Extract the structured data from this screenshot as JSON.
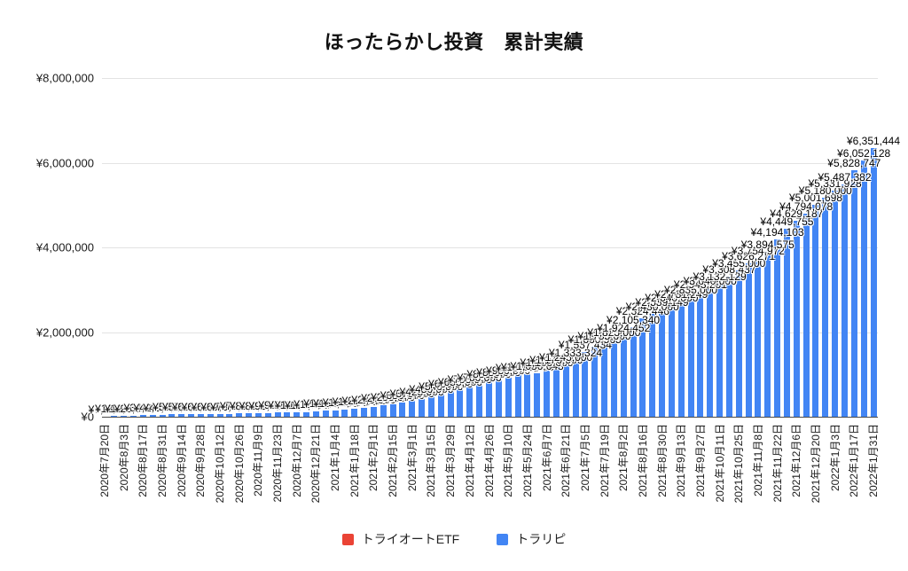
{
  "title": "ほったらかし投資　累計実績",
  "legend": {
    "items": [
      {
        "label": "トライオートETF",
        "color": "#EA4335"
      },
      {
        "label": "トラリピ",
        "color": "#4285F4"
      }
    ]
  },
  "chart_data": {
    "type": "bar",
    "title": "ほったらかし投資　累計実績",
    "xlabel": "",
    "ylabel": "",
    "ylim": [
      0,
      8000000
    ],
    "grid": "horizontal",
    "legend_position": "bottom",
    "bar_color": "#4285F4",
    "currency_prefix": "¥",
    "y_ticks": [
      {
        "value": 0,
        "label": "¥0"
      },
      {
        "value": 2000000,
        "label": "¥2,000,000"
      },
      {
        "value": 4000000,
        "label": "¥4,000,000"
      },
      {
        "value": 6000000,
        "label": "¥6,000,000"
      },
      {
        "value": 8000000,
        "label": "¥8,000,000"
      }
    ],
    "x_tick_every_n_bars": 2,
    "x_tick_labels": [
      "2020年7月20日",
      "2020年8月3日",
      "2020年8月17日",
      "2020年8月31日",
      "2020年9月14日",
      "2020年9月28日",
      "2020年10月12日",
      "2020年10月26日",
      "2020年11月9日",
      "2020年11月23日",
      "2020年12月7日",
      "2020年12月21日",
      "2021年1月4日",
      "2021年1月18日",
      "2021年2月1日",
      "2021年2月15日",
      "2021年3月1日",
      "2021年3月15日",
      "2021年3月29日",
      "2021年4月12日",
      "2021年4月26日",
      "2021年5月10日",
      "2021年5月24日",
      "2021年6月7日",
      "2021年6月21日",
      "2021年7月5日",
      "2021年7月19日",
      "2021年8月2日",
      "2021年8月16日",
      "2021年8月30日",
      "2021年9月13日",
      "2021年9月27日",
      "2021年10月11日",
      "2021年10月25日",
      "2021年11月8日",
      "2021年11月22日",
      "2021年12月6日",
      "2021年12月20日",
      "2022年1月3日",
      "2022年1月17日",
      "2022年1月31日"
    ],
    "readable_bar_labels": [
      "¥1,036,643",
      "¥1,333,324",
      "¥1,537,434",
      "¥1,660,965",
      "¥1,924,452",
      "¥2,105,340",
      "¥2,324,446",
      "¥2,539,149",
      "¥2,731,249",
      "¥2,943,201",
      "¥3,132,129",
      "¥3,308,437",
      "¥3,626,271",
      "¥3,894,575",
      "¥4,194,103",
      "¥4,449,755",
      "¥4,629,187",
      "¥4,794,078",
      "¥5,001,698",
      "¥5,331,928",
      "¥5,487,382",
      "¥5,828,747",
      "¥6,052,128",
      "¥6,351,444"
    ],
    "series": [
      {
        "name": "トライオートETF",
        "color": "#EA4335",
        "visible_bars": false
      },
      {
        "name": "トラリピ",
        "color": "#4285F4",
        "values": [
          7200,
          13000,
          19000,
          26000,
          34000,
          42000,
          48000,
          53000,
          57000,
          60000,
          63000,
          66000,
          69000,
          73000,
          78000,
          83000,
          88000,
          92000,
          95000,
          98000,
          103000,
          110000,
          122000,
          138000,
          152000,
          168000,
          190000,
          215000,
          240000,
          265000,
          295000,
          330000,
          375000,
          425000,
          480000,
          540000,
          600000,
          655000,
          705000,
          760000,
          830000,
          880000,
          930000,
          975000,
          1010000,
          1036643,
          1100000,
          1170000,
          1245000,
          1333324,
          1537434,
          1660965,
          1735000,
          1825000,
          1924452,
          2105340,
          2324446,
          2430000,
          2539149,
          2640000,
          2731249,
          2835000,
          2943201,
          3040000,
          3132129,
          3308437,
          3455000,
          3626271,
          3754972,
          3894575,
          4194103,
          4449755,
          4629187,
          4794078,
          5001698,
          5180000,
          5331928,
          5487382,
          5828747,
          6052128,
          6351444
        ]
      }
    ]
  }
}
